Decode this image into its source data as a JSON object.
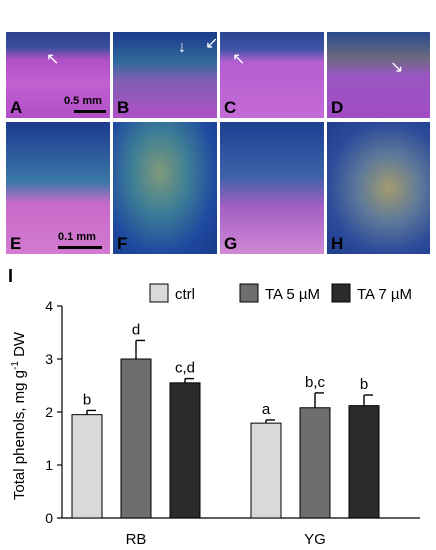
{
  "figure": {
    "panel_letters": [
      "A",
      "B",
      "C",
      "D",
      "E",
      "F",
      "G",
      "H"
    ],
    "scale_bars": {
      "top_row": "0.5 mm",
      "bottom_row": "0.1 mm"
    },
    "chart_letter": "I"
  },
  "chart_data": {
    "type": "bar",
    "title": "",
    "xlabel": "",
    "ylabel_main": "Total phenols, mg g",
    "ylabel_sup": "-1",
    "ylabel_tail": " DW",
    "ylim": [
      0,
      4
    ],
    "yticks": [
      0,
      1,
      2,
      3,
      4
    ],
    "grid": false,
    "legend_position": "top-right",
    "categories": [
      "RB",
      "YG"
    ],
    "series": [
      {
        "name": "ctrl",
        "color": "#d9d9d9",
        "values": [
          1.95,
          1.79
        ],
        "errors": [
          0.08,
          0.06
        ],
        "labels": [
          "b",
          "a"
        ]
      },
      {
        "name": "TA 5 µM",
        "color": "#6e6e6e",
        "values": [
          3.0,
          2.08
        ],
        "errors": [
          0.35,
          0.28
        ],
        "labels": [
          "d",
          "b,c"
        ]
      },
      {
        "name": "TA 7 µM",
        "color": "#2b2b2b",
        "values": [
          2.55,
          2.12
        ],
        "errors": [
          0.08,
          0.2
        ],
        "labels": [
          "c,d",
          "b"
        ]
      }
    ]
  }
}
